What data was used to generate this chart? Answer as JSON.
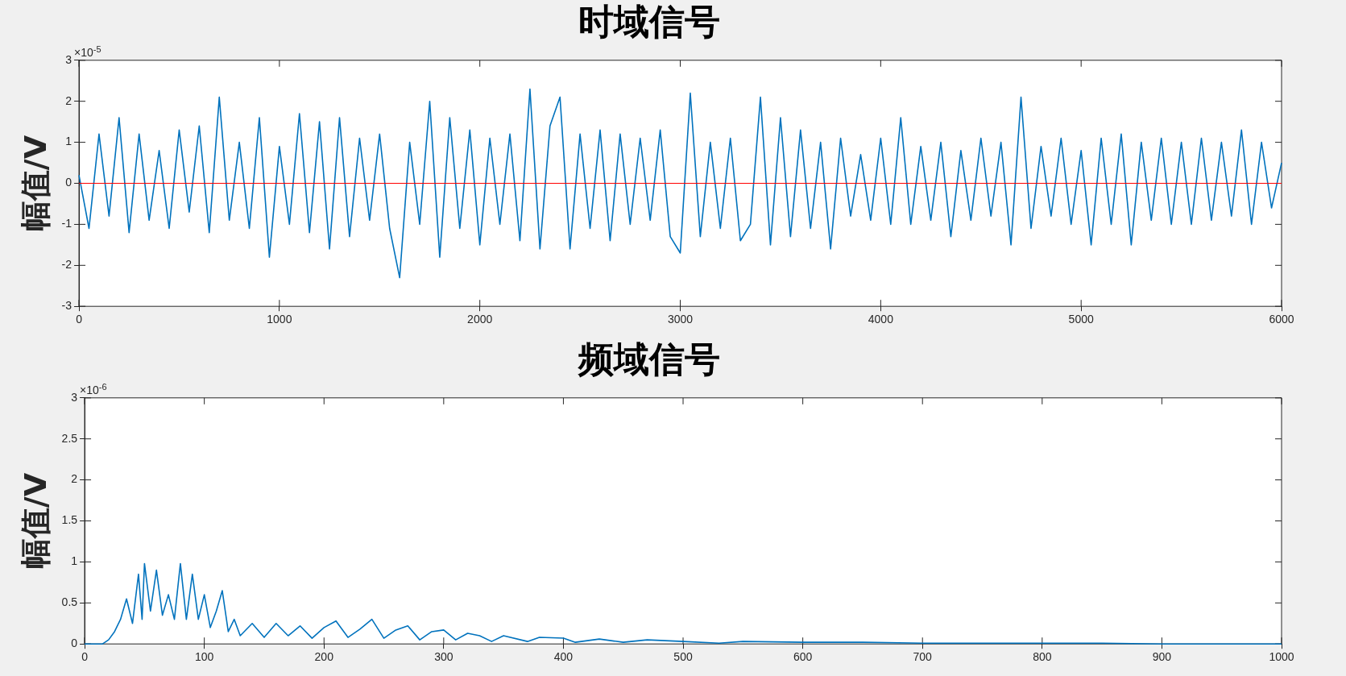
{
  "chart_data": [
    {
      "type": "line",
      "title": "时域信号",
      "ylabel": "幅值/V",
      "annotations": [
        "×10$^{-5}$"
      ],
      "xlim": [
        0,
        6000
      ],
      "xticks": [
        0,
        1000,
        2000,
        3000,
        4000,
        5000,
        6000
      ],
      "ylim": [
        -3,
        3
      ],
      "yticks": [
        -3,
        -2,
        -1,
        0,
        1,
        2,
        3
      ],
      "grid": false,
      "legend": false,
      "ref_lines": [
        {
          "axis": "y",
          "value": 0,
          "color": "#ff0000"
        }
      ],
      "series": [
        {
          "color": "#0072bd",
          "x": [
            0,
            50,
            100,
            150,
            200,
            250,
            300,
            350,
            400,
            450,
            500,
            550,
            600,
            650,
            700,
            750,
            800,
            850,
            900,
            950,
            1000,
            1050,
            1100,
            1150,
            1200,
            1250,
            1300,
            1350,
            1400,
            1450,
            1500,
            1550,
            1600,
            1650,
            1700,
            1750,
            1800,
            1850,
            1900,
            1950,
            2000,
            2050,
            2100,
            2150,
            2200,
            2250,
            2300,
            2350,
            2400,
            2450,
            2500,
            2550,
            2600,
            2650,
            2700,
            2750,
            2800,
            2850,
            2900,
            2950,
            3000,
            3050,
            3100,
            3150,
            3200,
            3250,
            3300,
            3350,
            3400,
            3450,
            3500,
            3550,
            3600,
            3650,
            3700,
            3750,
            3800,
            3850,
            3900,
            3950,
            4000,
            4050,
            4100,
            4150,
            4200,
            4250,
            4300,
            4350,
            4400,
            4450,
            4500,
            4550,
            4600,
            4650,
            4700,
            4750,
            4800,
            4850,
            4900,
            4950,
            5000,
            5050,
            5100,
            5150,
            5200,
            5250,
            5300,
            5350,
            5400,
            5450,
            5500,
            5550,
            5600,
            5650,
            5700,
            5750,
            5800,
            5850,
            5900,
            5950,
            6000
          ],
          "values": [
            0.2,
            -1.1,
            1.2,
            -0.8,
            1.6,
            -1.2,
            1.2,
            -0.9,
            0.8,
            -1.1,
            1.3,
            -0.7,
            1.4,
            -1.2,
            2.1,
            -0.9,
            1.0,
            -1.1,
            1.6,
            -1.8,
            0.9,
            -1.0,
            1.7,
            -1.2,
            1.5,
            -1.6,
            1.6,
            -1.3,
            1.1,
            -0.9,
            1.2,
            -1.1,
            -2.3,
            1.0,
            -1.0,
            2.0,
            -1.8,
            1.6,
            -1.1,
            1.3,
            -1.5,
            1.1,
            -1.0,
            1.2,
            -1.4,
            2.3,
            -1.6,
            1.4,
            2.1,
            -1.6,
            1.2,
            -1.1,
            1.3,
            -1.4,
            1.2,
            -1.0,
            1.1,
            -0.9,
            1.3,
            -1.3,
            -1.7,
            2.2,
            -1.3,
            1.0,
            -1.1,
            1.1,
            -1.4,
            -1.0,
            2.1,
            -1.5,
            1.6,
            -1.3,
            1.3,
            -1.1,
            1.0,
            -1.6,
            1.1,
            -0.8,
            0.7,
            -0.9,
            1.1,
            -1.0,
            1.6,
            -1.0,
            0.9,
            -0.9,
            1.0,
            -1.3,
            0.8,
            -0.9,
            1.1,
            -0.8,
            1.0,
            -1.5,
            2.1,
            -1.1,
            0.9,
            -0.8,
            1.1,
            -1.0,
            0.8,
            -1.5,
            1.1,
            -1.0,
            1.2,
            -1.5,
            1.0,
            -0.9,
            1.1,
            -1.0,
            1.0,
            -1.0,
            1.1,
            -0.9,
            1.0,
            -0.8,
            1.3,
            -1.0,
            1.0,
            -0.6,
            0.5
          ]
        }
      ]
    },
    {
      "type": "line",
      "title": "频域信号",
      "ylabel": "幅值/V",
      "annotations": [
        "×10$^{-6}$"
      ],
      "xlim": [
        0,
        1000
      ],
      "xticks": [
        0,
        100,
        200,
        300,
        400,
        500,
        600,
        700,
        800,
        900,
        1000
      ],
      "ylim": [
        0,
        3
      ],
      "yticks": [
        0,
        0.5,
        1,
        1.5,
        2,
        2.5,
        3
      ],
      "grid": false,
      "legend": false,
      "series": [
        {
          "color": "#0072bd",
          "x": [
            0,
            10,
            15,
            20,
            25,
            30,
            35,
            40,
            45,
            48,
            50,
            55,
            60,
            65,
            70,
            75,
            80,
            85,
            90,
            95,
            100,
            105,
            110,
            115,
            120,
            125,
            130,
            140,
            150,
            160,
            170,
            180,
            190,
            200,
            210,
            220,
            230,
            240,
            250,
            260,
            270,
            280,
            290,
            300,
            310,
            320,
            330,
            340,
            350,
            370,
            380,
            400,
            410,
            430,
            450,
            470,
            500,
            530,
            550,
            600,
            650,
            700,
            750,
            800,
            850,
            900,
            950,
            1000
          ],
          "values": [
            0,
            0,
            0,
            0.05,
            0.15,
            0.3,
            0.55,
            0.25,
            0.85,
            0.3,
            0.98,
            0.4,
            0.9,
            0.35,
            0.6,
            0.3,
            0.98,
            0.3,
            0.85,
            0.3,
            0.6,
            0.2,
            0.4,
            0.65,
            0.15,
            0.3,
            0.1,
            0.25,
            0.08,
            0.25,
            0.1,
            0.22,
            0.07,
            0.2,
            0.28,
            0.08,
            0.18,
            0.3,
            0.07,
            0.17,
            0.22,
            0.05,
            0.15,
            0.17,
            0.05,
            0.13,
            0.1,
            0.03,
            0.1,
            0.03,
            0.08,
            0.07,
            0.02,
            0.06,
            0.02,
            0.05,
            0.03,
            0.01,
            0.03,
            0.02,
            0.02,
            0.01,
            0.01,
            0.01,
            0.01,
            0,
            0,
            0
          ]
        }
      ]
    }
  ]
}
